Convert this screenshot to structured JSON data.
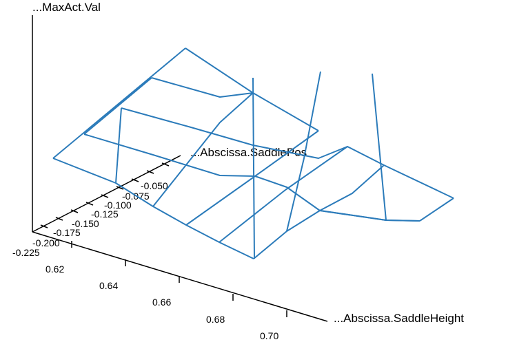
{
  "chart_data": {
    "type": "surface-3d-wireframe",
    "zlabel": "...MaxAct.Val",
    "xlabel": "...Abscissa.SaddleHeight",
    "ylabel": "...Abscissa.SaddlePos",
    "x_ticks": [
      "0.62",
      "0.64",
      "0.66",
      "0.68",
      "0.70"
    ],
    "y_ticks": [
      "-0.225",
      "-0.200",
      "-0.175",
      "-0.150",
      "-0.125",
      "-0.100",
      "-0.075",
      "-0.050"
    ],
    "colors": {
      "mesh": "#2b7bba",
      "axes": "#000000",
      "background": "#ffffff"
    }
  }
}
